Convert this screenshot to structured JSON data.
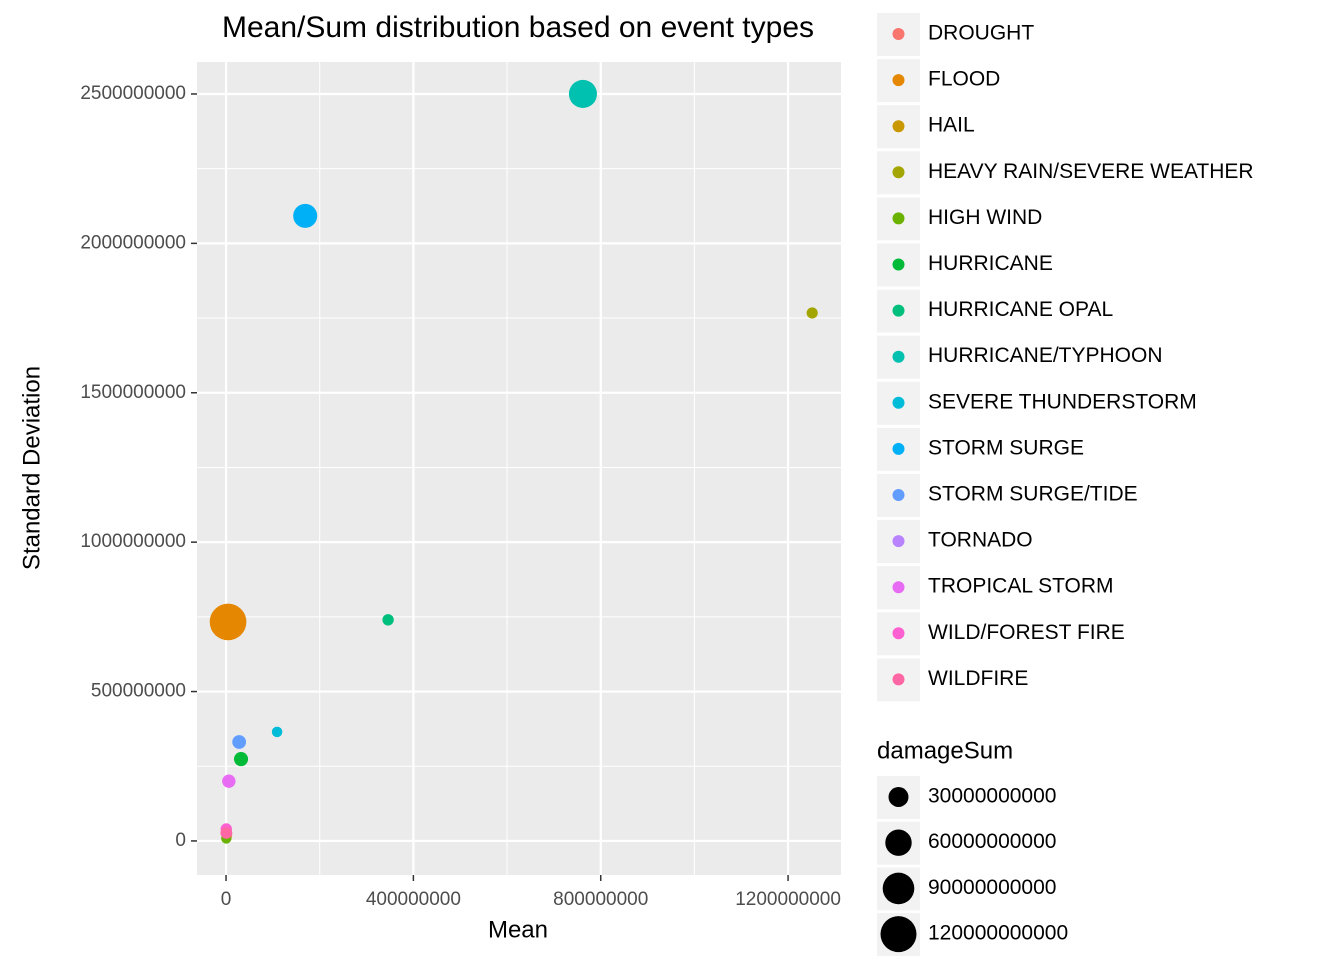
{
  "chart_data": {
    "type": "scatter",
    "title": "Mean/Sum distribution based on event types",
    "x_label": "Mean",
    "y_label": "Standard Deviation",
    "xlim": [
      -62000000,
      1313000000
    ],
    "ylim": [
      -114000000,
      2607000000
    ],
    "xticks": [
      0,
      400000000,
      800000000,
      1200000000
    ],
    "yticks": [
      0,
      500000000,
      1000000000,
      1500000000,
      2000000000,
      2500000000
    ],
    "grid": true,
    "legend": "right",
    "size_title": "damageSum",
    "size_ticks": [
      30000000000,
      60000000000,
      90000000000,
      120000000000
    ],
    "series": [
      {
        "name": "DROUGHT",
        "color": "#F8766D",
        "x": [
          2000000
        ],
        "values": [
          20000000
        ],
        "sizes": [
          1000000000
        ]
      },
      {
        "name": "FLOOD",
        "color": "#E58700",
        "x": [
          4300000
        ],
        "values": [
          733000000
        ],
        "sizes": [
          125000000000
        ]
      },
      {
        "name": "HAIL",
        "color": "#C99800",
        "x": [
          1000000
        ],
        "values": [
          10000000
        ],
        "sizes": [
          500000000
        ]
      },
      {
        "name": "HEAVY RAIN/SEVERE WEATHER",
        "color": "#A3A500",
        "x": [
          1251500000
        ],
        "values": [
          1767000000
        ],
        "sizes": [
          2500000000
        ]
      },
      {
        "name": "HIGH WIND",
        "color": "#6BB100",
        "x": [
          500000
        ],
        "values": [
          8000000
        ],
        "sizes": [
          500000000
        ]
      },
      {
        "name": "HURRICANE",
        "color": "#00BA38",
        "x": [
          32000000
        ],
        "values": [
          274000000
        ],
        "sizes": [
          10000000000
        ]
      },
      {
        "name": "HURRICANE OPAL",
        "color": "#00BF7D",
        "x": [
          346000000
        ],
        "values": [
          740000000
        ],
        "sizes": [
          3000000000
        ]
      },
      {
        "name": "HURRICANE/TYPHOON",
        "color": "#00C0AF",
        "x": [
          762000000
        ],
        "values": [
          2500000000
        ],
        "sizes": [
          69000000000
        ]
      },
      {
        "name": "SEVERE THUNDERSTORM",
        "color": "#00BCD8",
        "x": [
          109000000
        ],
        "values": [
          365000000
        ],
        "sizes": [
          1000000000
        ]
      },
      {
        "name": "STORM SURGE",
        "color": "#00B0F6",
        "x": [
          169000000
        ],
        "values": [
          2092000000
        ],
        "sizes": [
          48000000000
        ]
      },
      {
        "name": "STORM SURGE/TIDE",
        "color": "#619CFF",
        "x": [
          28000000
        ],
        "values": [
          331000000
        ],
        "sizes": [
          9000000000
        ]
      },
      {
        "name": "TORNADO",
        "color": "#B983FF",
        "x": [
          800000
        ],
        "values": [
          30000000
        ],
        "sizes": [
          2000000000
        ]
      },
      {
        "name": "TROPICAL STORM",
        "color": "#E76BF3",
        "x": [
          6000000
        ],
        "values": [
          200000000
        ],
        "sizes": [
          8000000000
        ]
      },
      {
        "name": "WILD/FOREST FIRE",
        "color": "#FD61D1",
        "x": [
          500000
        ],
        "values": [
          40000000
        ],
        "sizes": [
          3000000000
        ]
      },
      {
        "name": "WILDFIRE",
        "color": "#FF67A4",
        "x": [
          700000
        ],
        "values": [
          27000000
        ],
        "sizes": [
          4000000000
        ]
      }
    ]
  }
}
